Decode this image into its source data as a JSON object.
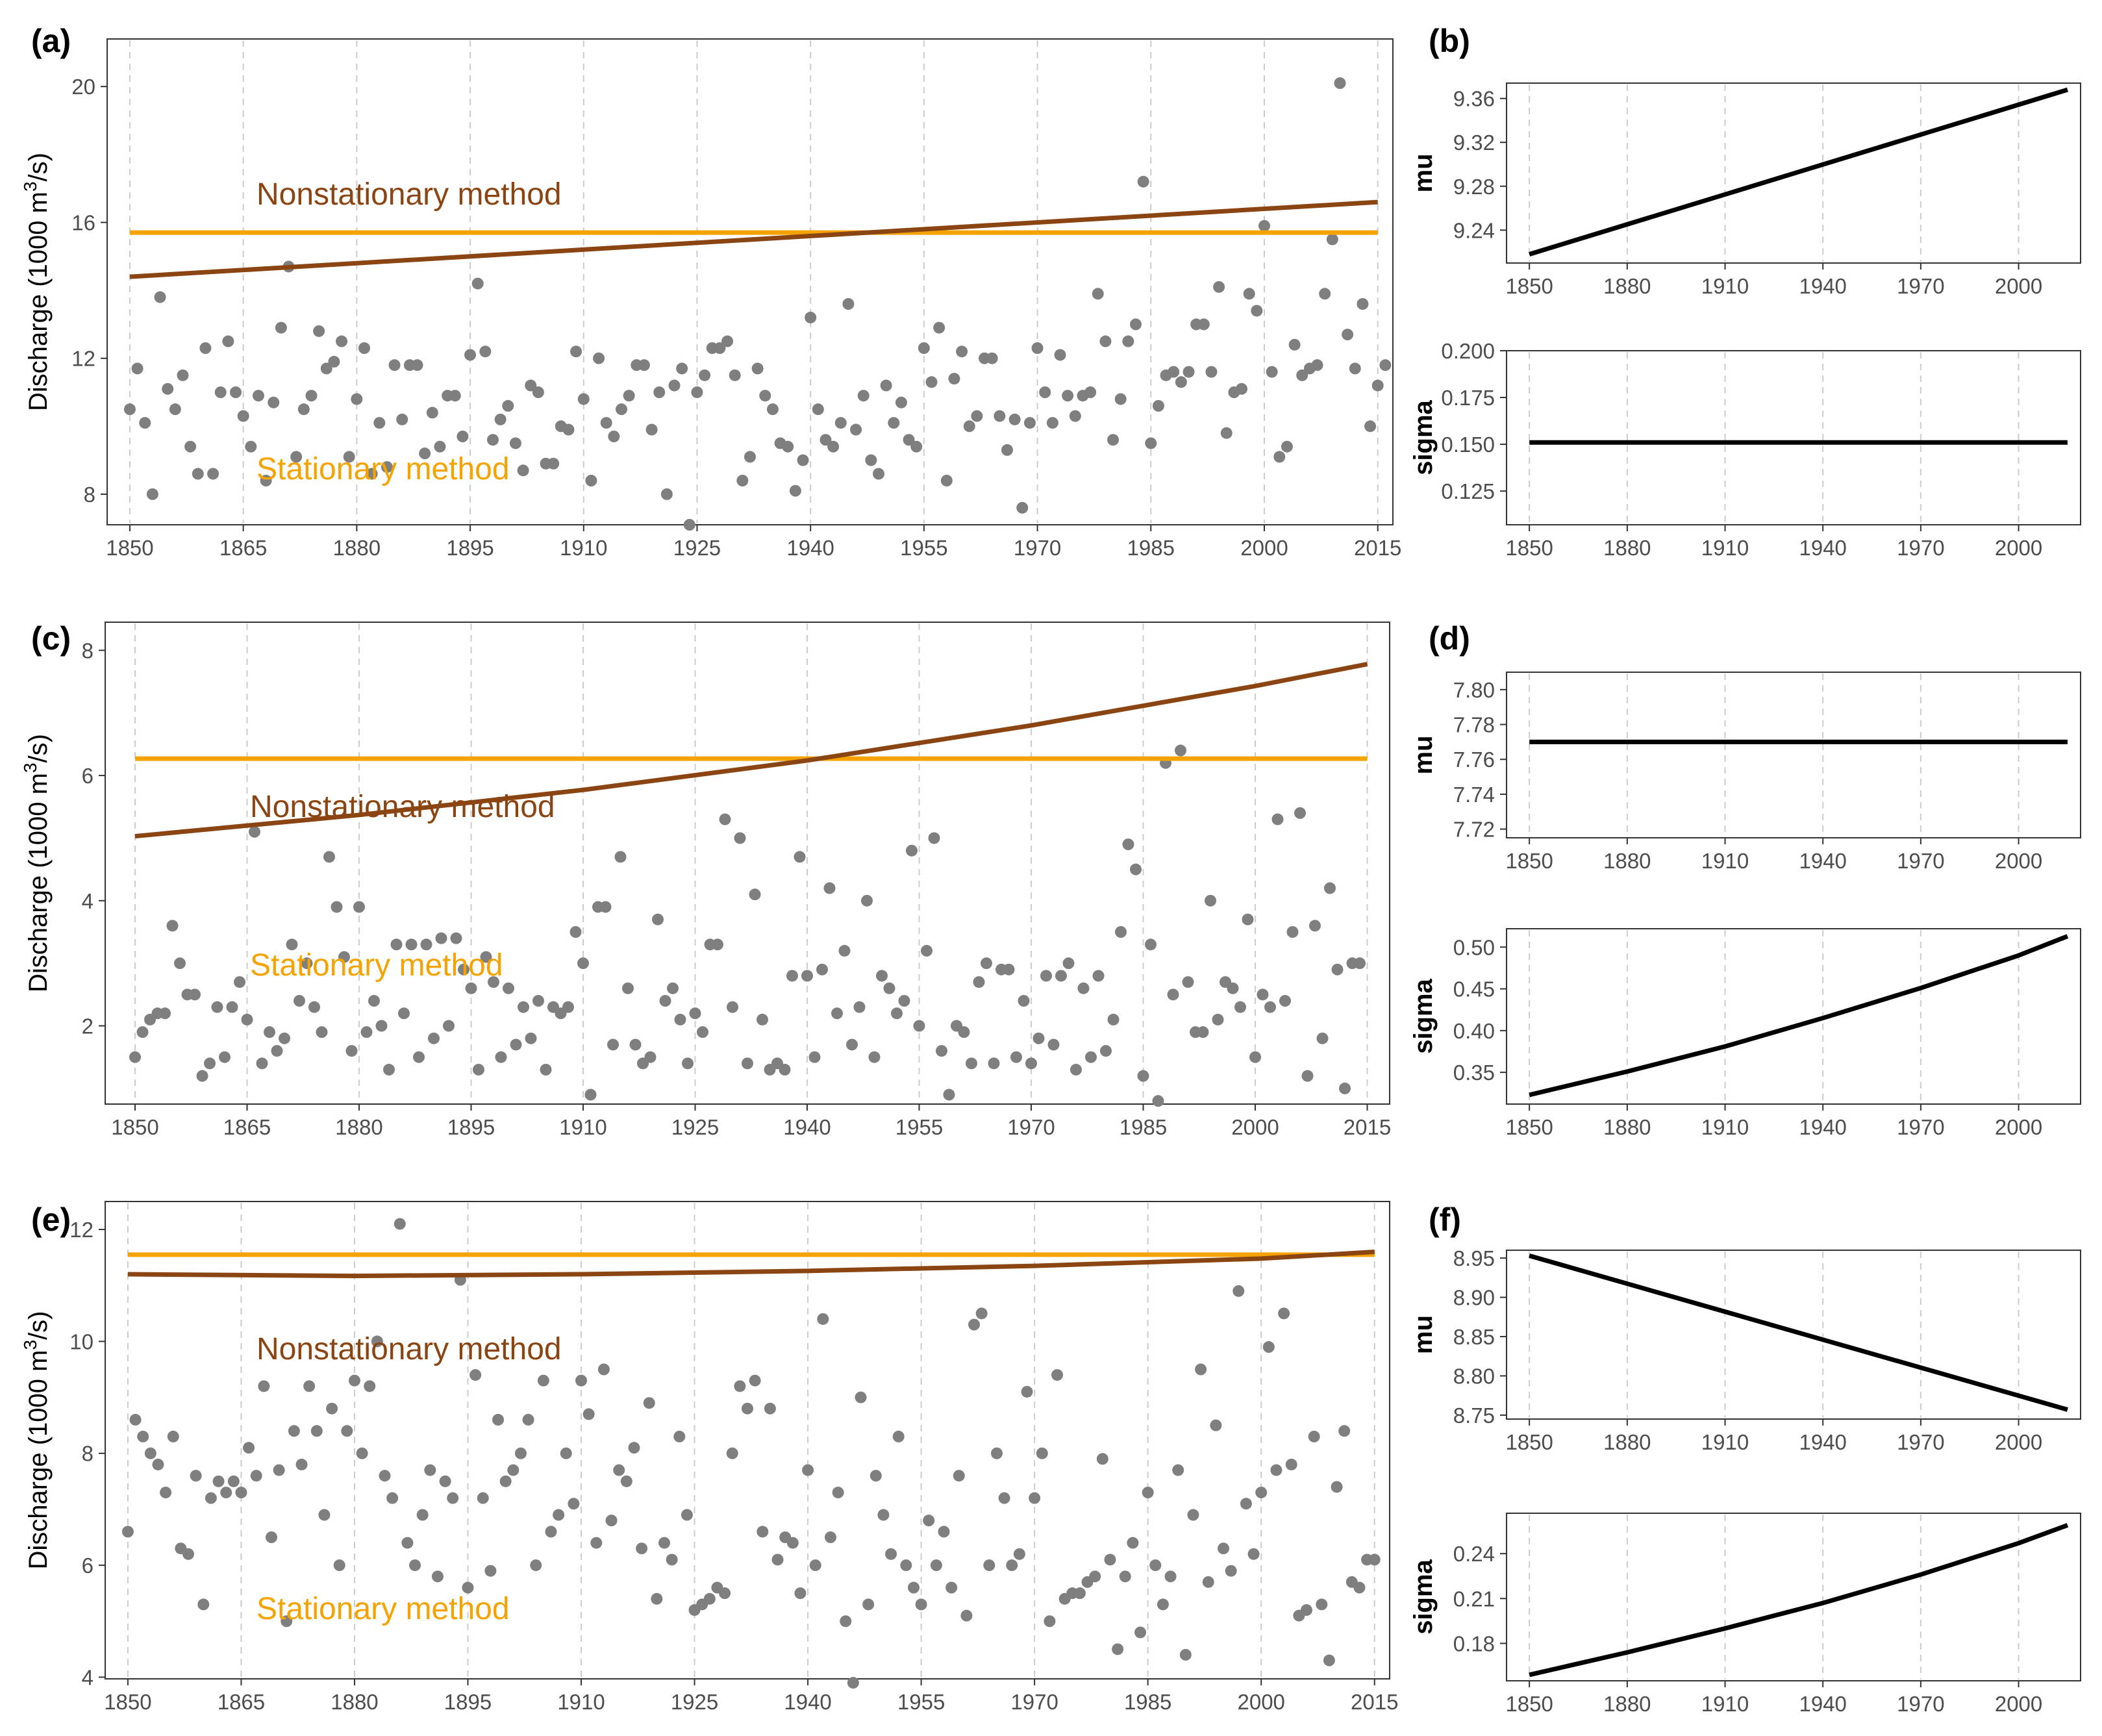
{
  "colors": {
    "stationary": "#f5a300",
    "nonstationary": "#8b4513",
    "points": "#7f7f7f",
    "param_line": "#000000",
    "grid": "#cccccc"
  },
  "chart_data": [
    {
      "panel": "(a)",
      "type": "scatter",
      "ylabel_prefix": "Discharge (1000 m",
      "ylabel_sup": "3",
      "ylabel_suffix": "/s)",
      "xlim": [
        1847,
        2017
      ],
      "ylim": [
        7.1,
        21.4
      ],
      "xticks": [
        1850,
        1865,
        1880,
        1895,
        1910,
        1925,
        1940,
        1955,
        1970,
        1985,
        2000,
        2015
      ],
      "yticks": [
        8,
        12,
        16,
        20
      ],
      "stationary": {
        "label": "Stationary method",
        "value": 15.7
      },
      "nonstationary": {
        "label": "Nonstationary method",
        "x": [
          1850,
          2015
        ],
        "y": [
          14.4,
          16.6
        ]
      },
      "start_year": 1850,
      "values": [
        10.5,
        11.7,
        10.1,
        8.0,
        13.8,
        11.1,
        10.5,
        11.5,
        9.4,
        8.6,
        12.3,
        8.6,
        11.0,
        12.5,
        11.0,
        10.3,
        9.4,
        10.9,
        8.4,
        10.7,
        12.9,
        14.7,
        9.1,
        10.5,
        10.9,
        12.8,
        11.7,
        11.9,
        12.5,
        9.1,
        10.8,
        12.3,
        8.6,
        10.1,
        8.8,
        11.8,
        10.2,
        11.8,
        11.8,
        9.2,
        10.4,
        9.4,
        10.9,
        10.9,
        9.7,
        12.1,
        14.2,
        12.2,
        9.6,
        10.2,
        10.6,
        9.5,
        8.7,
        11.2,
        11.0,
        8.9,
        8.9,
        10.0,
        9.9,
        12.2,
        10.8,
        8.4,
        12.0,
        10.1,
        9.7,
        10.5,
        10.9,
        11.8,
        11.8,
        9.9,
        11.0,
        8.0,
        11.2,
        11.7,
        7.1,
        11.0,
        11.5,
        12.3,
        12.3,
        12.5,
        11.5,
        8.4,
        9.1,
        11.7,
        10.9,
        10.5,
        9.5,
        9.4,
        8.1,
        9.0,
        13.2,
        10.5,
        9.6,
        9.4,
        10.1,
        13.6,
        9.9,
        10.9,
        9.0,
        8.6,
        11.2,
        10.1,
        10.7,
        9.6,
        9.4,
        12.3,
        11.3,
        12.9,
        8.4,
        11.4,
        12.2,
        10.0,
        10.3,
        12.0,
        12.0,
        10.3,
        9.3,
        10.2,
        7.6,
        10.1,
        12.3,
        11.0,
        10.1,
        12.1,
        10.9,
        10.3,
        10.9,
        11.0,
        13.9,
        12.5,
        9.6,
        10.8,
        12.5,
        13.0,
        17.2,
        9.5,
        10.6,
        11.5,
        11.6,
        11.3,
        11.6,
        13.0,
        13.0,
        11.6,
        14.1,
        9.8,
        11.0,
        11.1,
        13.9,
        13.4,
        15.9,
        11.6,
        9.1,
        9.4,
        12.4,
        11.5,
        11.7,
        11.8,
        13.9,
        15.5,
        20.1,
        12.7,
        11.7,
        13.6,
        10.0,
        11.2,
        11.8
      ]
    },
    {
      "panel": "(b)",
      "type": "line",
      "ylabel": "mu",
      "xlim": [
        1843,
        2019
      ],
      "ylim": [
        9.21,
        9.374
      ],
      "xticks": [
        1850,
        1880,
        1910,
        1940,
        1970,
        2000
      ],
      "yticks": [
        9.24,
        9.28,
        9.32,
        9.36
      ],
      "ytick_labels": [
        "9.24",
        "9.28",
        "9.32",
        "9.36"
      ],
      "x": [
        1850,
        2015
      ],
      "y": [
        9.218,
        9.368
      ]
    },
    {
      "panel": "(b)",
      "type": "line",
      "ylabel": "sigma",
      "xlim": [
        1843,
        2019
      ],
      "ylim": [
        0.107,
        0.2
      ],
      "xticks": [
        1850,
        1880,
        1910,
        1940,
        1970,
        2000
      ],
      "yticks": [
        0.125,
        0.15,
        0.175,
        0.2
      ],
      "ytick_labels": [
        "0.125",
        "0.150",
        "0.175",
        "0.200"
      ],
      "x": [
        1850,
        2015
      ],
      "y": [
        0.151,
        0.151
      ]
    },
    {
      "panel": "(c)",
      "type": "scatter",
      "ylabel_prefix": "Discharge (1000 m",
      "ylabel_sup": "3",
      "ylabel_suffix": "/s)",
      "xlim": [
        1846,
        2018
      ],
      "ylim": [
        0.75,
        8.45
      ],
      "xticks": [
        1850,
        1865,
        1880,
        1895,
        1910,
        1925,
        1940,
        1955,
        1970,
        1985,
        2000,
        2015
      ],
      "yticks": [
        2,
        4,
        6,
        8
      ],
      "stationary": {
        "label": "Stationary method",
        "value": 6.27
      },
      "nonstationary": {
        "label": "Nonstationary method",
        "x": [
          1850,
          1880,
          1910,
          1940,
          1970,
          2000,
          2015
        ],
        "y": [
          5.03,
          5.37,
          5.77,
          6.24,
          6.8,
          7.43,
          7.78
        ]
      },
      "start_year": 1850,
      "values": [
        1.5,
        1.9,
        2.1,
        2.2,
        2.2,
        3.6,
        3.0,
        2.5,
        2.5,
        1.2,
        1.4,
        2.3,
        1.5,
        2.3,
        2.7,
        2.1,
        5.1,
        1.4,
        1.9,
        1.6,
        1.8,
        3.3,
        2.4,
        3.0,
        2.3,
        1.9,
        4.7,
        3.9,
        3.1,
        1.6,
        3.9,
        1.9,
        2.4,
        2.0,
        1.3,
        3.3,
        2.2,
        3.3,
        1.5,
        3.3,
        1.8,
        3.4,
        2.0,
        3.4,
        2.9,
        2.6,
        1.3,
        3.1,
        2.7,
        1.5,
        2.6,
        1.7,
        2.3,
        1.8,
        2.4,
        1.3,
        2.3,
        2.2,
        2.3,
        3.5,
        3.0,
        0.9,
        3.9,
        3.9,
        1.7,
        4.7,
        2.6,
        1.7,
        1.4,
        1.5,
        3.7,
        2.4,
        2.6,
        2.1,
        1.4,
        2.2,
        1.9,
        3.3,
        3.3,
        5.3,
        2.3,
        5.0,
        1.4,
        4.1,
        2.1,
        1.3,
        1.4,
        1.3,
        2.8,
        4.7,
        2.8,
        1.5,
        2.9,
        4.2,
        2.2,
        3.2,
        1.7,
        2.3,
        4.0,
        1.5,
        2.8,
        2.6,
        2.2,
        2.4,
        4.8,
        2.0,
        3.2,
        5.0,
        1.6,
        0.9,
        2.0,
        1.9,
        1.4,
        2.7,
        3.0,
        1.4,
        2.9,
        2.9,
        1.5,
        2.4,
        1.4,
        1.8,
        2.8,
        1.7,
        2.8,
        3.0,
        1.3,
        2.6,
        1.5,
        2.8,
        1.6,
        2.1,
        3.5,
        4.9,
        4.5,
        1.2,
        3.3,
        0.8,
        6.2,
        2.5,
        6.4,
        2.7,
        1.9,
        1.9,
        4.0,
        2.1,
        2.7,
        2.6,
        2.3,
        3.7,
        1.5,
        2.5,
        2.3,
        5.3,
        2.4,
        3.5,
        5.4,
        1.2,
        3.6,
        1.8,
        4.2,
        2.9,
        1.0,
        3.0,
        3.0
      ]
    },
    {
      "panel": "(d)",
      "type": "line",
      "ylabel": "mu",
      "xlim": [
        1843,
        2019
      ],
      "ylim": [
        7.715,
        7.81
      ],
      "xticks": [
        1850,
        1880,
        1910,
        1940,
        1970,
        2000
      ],
      "yticks": [
        7.72,
        7.74,
        7.76,
        7.78,
        7.8
      ],
      "ytick_labels": [
        "7.72",
        "7.74",
        "7.76",
        "7.78",
        "7.80"
      ],
      "x": [
        1850,
        2015
      ],
      "y": [
        7.77,
        7.77
      ]
    },
    {
      "panel": "(d)",
      "type": "line",
      "ylabel": "sigma",
      "xlim": [
        1843,
        2019
      ],
      "ylim": [
        0.312,
        0.522
      ],
      "xticks": [
        1850,
        1880,
        1910,
        1940,
        1970,
        2000
      ],
      "yticks": [
        0.35,
        0.4,
        0.45,
        0.5
      ],
      "ytick_labels": [
        "0.35",
        "0.40",
        "0.45",
        "0.50"
      ],
      "x": [
        1850,
        1880,
        1910,
        1940,
        1970,
        2000,
        2015
      ],
      "y": [
        0.323,
        0.351,
        0.381,
        0.415,
        0.451,
        0.49,
        0.513
      ]
    },
    {
      "panel": "(e)",
      "type": "scatter",
      "ylabel_prefix": "Discharge (1000 m",
      "ylabel_sup": "3",
      "ylabel_suffix": "/s)",
      "xlim": [
        1847,
        2017
      ],
      "ylim": [
        3.97,
        12.5
      ],
      "xticks": [
        1850,
        1865,
        1880,
        1895,
        1910,
        1925,
        1940,
        1955,
        1970,
        1985,
        2000,
        2015
      ],
      "yticks": [
        4,
        6,
        8,
        10,
        12
      ],
      "stationary": {
        "label": "Stationary method",
        "value": 11.55
      },
      "nonstationary": {
        "label": "Nonstationary method",
        "x": [
          1850,
          1880,
          1910,
          1940,
          1970,
          2000,
          2015
        ],
        "y": [
          11.2,
          11.17,
          11.2,
          11.26,
          11.35,
          11.48,
          11.6
        ]
      },
      "start_year": 1850,
      "values": [
        6.6,
        8.6,
        8.3,
        8.0,
        7.8,
        7.3,
        8.3,
        6.3,
        6.2,
        7.6,
        5.3,
        7.2,
        7.5,
        7.3,
        7.5,
        7.3,
        8.1,
        7.6,
        9.2,
        6.5,
        7.7,
        5.0,
        8.4,
        7.8,
        9.2,
        8.4,
        6.9,
        8.8,
        6.0,
        8.4,
        9.3,
        8.0,
        9.2,
        10.0,
        7.6,
        7.2,
        12.1,
        6.4,
        6.0,
        6.9,
        7.7,
        5.8,
        7.5,
        7.2,
        11.1,
        5.6,
        9.4,
        7.2,
        5.9,
        8.6,
        7.5,
        7.7,
        8.0,
        8.6,
        6.0,
        9.3,
        6.6,
        6.9,
        8.0,
        7.1,
        9.3,
        8.7,
        6.4,
        9.5,
        6.8,
        7.7,
        7.5,
        8.1,
        6.3,
        8.9,
        5.4,
        6.4,
        6.1,
        8.3,
        6.9,
        5.2,
        5.3,
        5.4,
        5.6,
        5.5,
        8.0,
        9.2,
        8.8,
        9.3,
        6.6,
        8.8,
        6.1,
        6.5,
        6.4,
        5.5,
        7.7,
        6.0,
        10.4,
        6.5,
        7.3,
        5.0,
        3.9,
        9.0,
        5.3,
        7.6,
        6.9,
        6.2,
        8.3,
        6.0,
        5.6,
        5.3,
        6.8,
        6.0,
        6.6,
        5.6,
        7.6,
        5.1,
        10.3,
        10.5,
        6.0,
        8.0,
        7.2,
        6.0,
        6.2,
        9.1,
        7.2,
        8.0,
        5.0,
        9.4,
        5.4,
        5.5,
        5.5,
        5.7,
        5.8,
        7.9,
        6.1,
        4.5,
        5.8,
        6.4,
        4.8,
        7.3,
        6.0,
        5.3,
        5.8,
        7.7,
        4.4,
        6.9,
        9.5,
        5.7,
        8.5,
        6.3,
        5.9,
        10.9,
        7.1,
        6.2,
        7.3,
        9.9,
        7.7,
        10.5,
        7.8,
        5.1,
        5.2,
        8.3,
        5.3,
        4.3,
        7.4,
        8.4,
        5.7,
        5.6,
        6.1,
        6.1
      ]
    },
    {
      "panel": "(f)",
      "type": "line",
      "ylabel": "mu",
      "xlim": [
        1843,
        2019
      ],
      "ylim": [
        8.745,
        8.96
      ],
      "xticks": [
        1850,
        1880,
        1910,
        1940,
        1970,
        2000
      ],
      "yticks": [
        8.75,
        8.8,
        8.85,
        8.9,
        8.95
      ],
      "ytick_labels": [
        "8.75",
        "8.80",
        "8.85",
        "8.90",
        "8.95"
      ],
      "x": [
        1850,
        2015
      ],
      "y": [
        8.953,
        8.757
      ]
    },
    {
      "panel": "(f)",
      "type": "line",
      "ylabel": "sigma",
      "xlim": [
        1843,
        2019
      ],
      "ylim": [
        0.155,
        0.267
      ],
      "xticks": [
        1850,
        1880,
        1910,
        1940,
        1970,
        2000
      ],
      "yticks": [
        0.18,
        0.21,
        0.24
      ],
      "ytick_labels": [
        "0.18",
        "0.21",
        "0.24"
      ],
      "x": [
        1850,
        1880,
        1910,
        1940,
        1970,
        2000,
        2015
      ],
      "y": [
        0.159,
        0.174,
        0.19,
        0.207,
        0.226,
        0.247,
        0.259
      ]
    }
  ]
}
